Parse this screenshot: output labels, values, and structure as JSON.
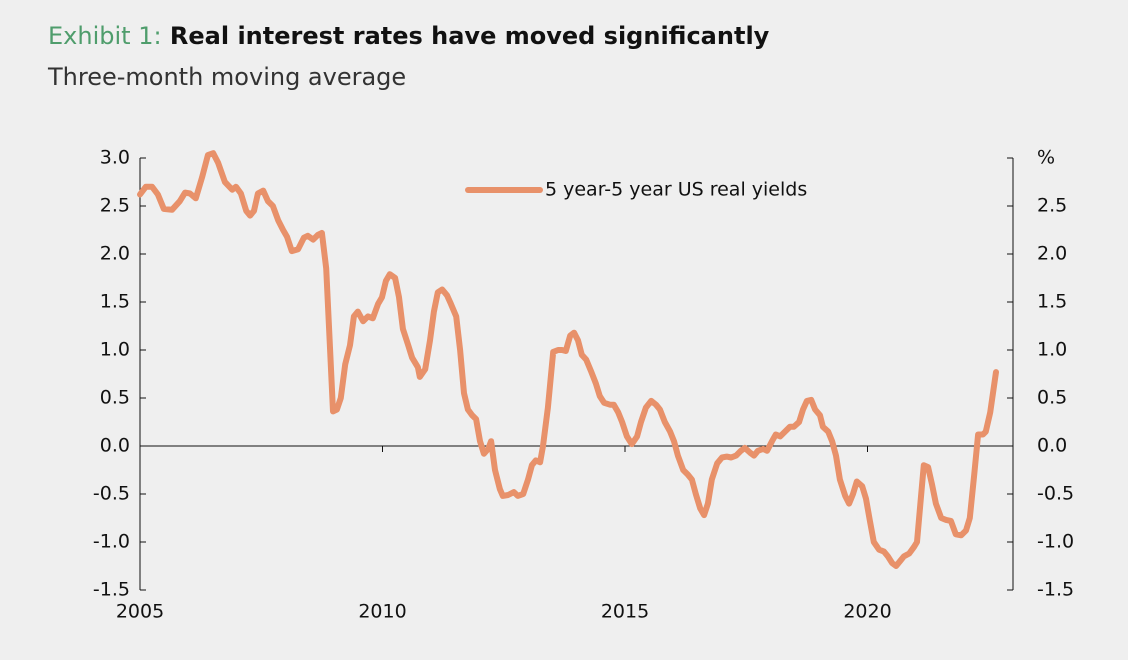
{
  "chart_data": {
    "type": "line",
    "exhibit": "Exhibit 1:",
    "title": "Real interest rates have moved significantly",
    "subtitle": "Three-month moving average",
    "x": [
      2005.0,
      2005.12,
      2005.25,
      2005.37,
      2005.49,
      2005.66,
      2005.82,
      2005.93,
      2006.03,
      2006.15,
      2006.28,
      2006.4,
      2006.51,
      2006.61,
      2006.75,
      2006.9,
      2006.98,
      2007.08,
      2007.19,
      2007.27,
      2007.35,
      2007.43,
      2007.54,
      2007.64,
      2007.74,
      2007.85,
      2007.95,
      2008.03,
      2008.13,
      2008.26,
      2008.38,
      2008.46,
      2008.57,
      2008.67,
      2008.75,
      2008.84,
      2008.92,
      2008.98,
      2009.06,
      2009.14,
      2009.23,
      2009.33,
      2009.41,
      2009.49,
      2009.6,
      2009.7,
      2009.8,
      2009.91,
      2009.99,
      2010.07,
      2010.15,
      2010.26,
      2010.34,
      2010.42,
      2010.53,
      2010.61,
      2010.73,
      2010.77,
      2010.88,
      2010.98,
      2011.06,
      2011.14,
      2011.23,
      2011.33,
      2011.41,
      2011.52,
      2011.6,
      2011.68,
      2011.76,
      2011.85,
      2011.93,
      2012.01,
      2012.09,
      2012.18,
      2012.24,
      2012.32,
      2012.42,
      2012.48,
      2012.59,
      2012.71,
      2012.79,
      2012.9,
      2013.0,
      2013.08,
      2013.16,
      2013.25,
      2013.31,
      2013.41,
      2013.52,
      2013.62,
      2013.7,
      2013.78,
      2013.87,
      2013.95,
      2014.03,
      2014.11,
      2014.2,
      2014.3,
      2014.4,
      2014.48,
      2014.57,
      2014.69,
      2014.77,
      2014.86,
      2014.94,
      2015.04,
      2015.14,
      2015.25,
      2015.33,
      2015.43,
      2015.54,
      2015.64,
      2015.72,
      2015.82,
      2015.93,
      2016.01,
      2016.09,
      2016.2,
      2016.3,
      2016.38,
      2016.46,
      2016.55,
      2016.63,
      2016.71,
      2016.79,
      2016.9,
      2017.0,
      2017.1,
      2017.19,
      2017.29,
      2017.39,
      2017.47,
      2017.58,
      2017.66,
      2017.74,
      2017.85,
      2017.93,
      2018.03,
      2018.11,
      2018.2,
      2018.3,
      2018.4,
      2018.48,
      2018.59,
      2018.67,
      2018.75,
      2018.84,
      2018.92,
      2019.02,
      2019.08,
      2019.19,
      2019.27,
      2019.35,
      2019.43,
      2019.54,
      2019.62,
      2019.7,
      2019.78,
      2019.89,
      2019.97,
      2020.05,
      2020.13,
      2020.24,
      2020.34,
      2020.42,
      2020.51,
      2020.59,
      2020.67,
      2020.75,
      2020.86,
      2020.96,
      2021.02,
      2021.1,
      2021.16,
      2021.25,
      2021.33,
      2021.41,
      2021.52,
      2021.62,
      2021.72,
      2021.82,
      2021.93,
      2022.03,
      2022.11,
      2022.2,
      2022.28,
      2022.38,
      2022.44,
      2022.53,
      2022.65
    ],
    "series": [
      {
        "name": "5 year-5 year US real yields",
        "color": "#e8916a",
        "values": [
          2.62,
          2.7,
          2.7,
          2.62,
          2.47,
          2.46,
          2.55,
          2.64,
          2.63,
          2.58,
          2.8,
          3.03,
          3.05,
          2.95,
          2.75,
          2.67,
          2.7,
          2.63,
          2.45,
          2.4,
          2.45,
          2.63,
          2.66,
          2.55,
          2.5,
          2.35,
          2.25,
          2.18,
          2.03,
          2.05,
          2.17,
          2.19,
          2.15,
          2.2,
          2.22,
          1.85,
          1.0,
          0.36,
          0.38,
          0.5,
          0.85,
          1.05,
          1.35,
          1.4,
          1.3,
          1.35,
          1.33,
          1.48,
          1.55,
          1.72,
          1.79,
          1.75,
          1.55,
          1.22,
          1.05,
          0.92,
          0.82,
          0.72,
          0.8,
          1.1,
          1.4,
          1.6,
          1.63,
          1.57,
          1.48,
          1.35,
          1.0,
          0.55,
          0.38,
          0.32,
          0.28,
          0.05,
          -0.08,
          -0.03,
          0.05,
          -0.25,
          -0.45,
          -0.52,
          -0.51,
          -0.48,
          -0.52,
          -0.5,
          -0.35,
          -0.2,
          -0.15,
          -0.17,
          0.0,
          0.4,
          0.98,
          1.0,
          1.0,
          0.99,
          1.15,
          1.18,
          1.1,
          0.95,
          0.9,
          0.78,
          0.65,
          0.52,
          0.45,
          0.43,
          0.43,
          0.35,
          0.25,
          0.1,
          0.02,
          0.1,
          0.25,
          0.4,
          0.47,
          0.43,
          0.38,
          0.25,
          0.15,
          0.05,
          -0.1,
          -0.25,
          -0.3,
          -0.35,
          -0.5,
          -0.65,
          -0.72,
          -0.6,
          -0.35,
          -0.18,
          -0.12,
          -0.11,
          -0.12,
          -0.1,
          -0.05,
          -0.02,
          -0.07,
          -0.1,
          -0.05,
          -0.03,
          -0.05,
          0.05,
          0.12,
          0.1,
          0.15,
          0.2,
          0.2,
          0.25,
          0.38,
          0.47,
          0.48,
          0.38,
          0.32,
          0.2,
          0.15,
          0.05,
          -0.1,
          -0.35,
          -0.52,
          -0.6,
          -0.5,
          -0.37,
          -0.42,
          -0.55,
          -0.78,
          -1.0,
          -1.08,
          -1.1,
          -1.15,
          -1.22,
          -1.25,
          -1.2,
          -1.15,
          -1.12,
          -1.05,
          -1.0,
          -0.55,
          -0.2,
          -0.22,
          -0.4,
          -0.6,
          -0.75,
          -0.77,
          -0.78,
          -0.92,
          -0.93,
          -0.88,
          -0.75,
          -0.3,
          0.12,
          0.12,
          0.15,
          0.35,
          0.77
        ]
      }
    ],
    "xlim": [
      2005,
      2023
    ],
    "xticks": [
      2005,
      2010,
      2015,
      2020
    ],
    "ylim": [
      -1.5,
      3.0
    ],
    "yticks": [
      {
        "value": 3.0,
        "label": "3.0"
      },
      2.5,
      {
        "value": 2.0,
        "label": "2.0"
      },
      1.5,
      {
        "value": 1.0,
        "label": "1.0"
      },
      0.5,
      {
        "value": 0.0,
        "label": "0.0"
      },
      -0.5,
      {
        "value": -1.0,
        "label": "-1.0"
      },
      -1.5
    ],
    "y2lim": [
      -1.5,
      3.0
    ],
    "y2ticks": [
      {
        "value": 3.0,
        "label": "%"
      },
      2.5,
      {
        "value": 2.0,
        "label": "2.0"
      },
      1.5,
      {
        "value": 1.0,
        "label": "1.0"
      },
      0.5,
      {
        "value": 0.0,
        "label": "0.0"
      },
      -0.5,
      {
        "value": -1.0,
        "label": "-1.0"
      },
      -1.5
    ],
    "legend": "top"
  }
}
